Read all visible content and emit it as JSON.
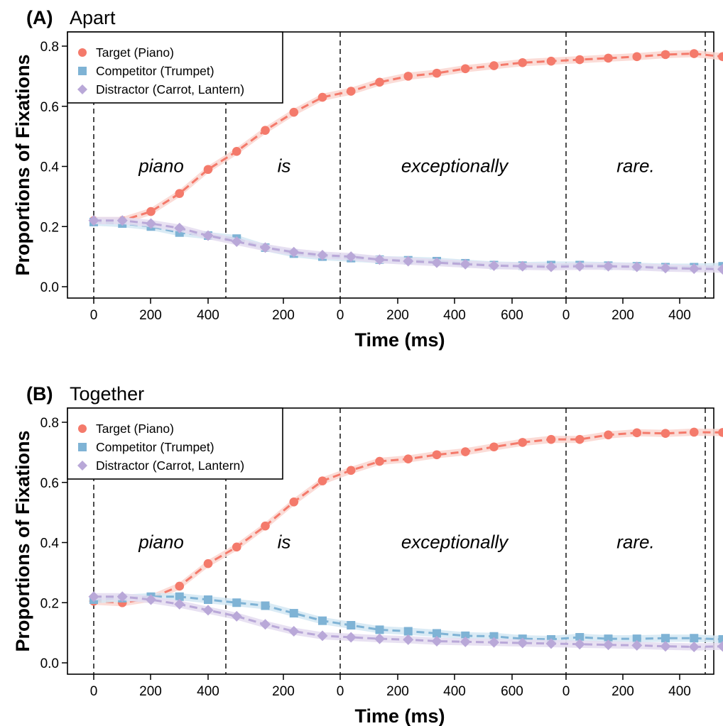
{
  "colors": {
    "target": "#f47a6b",
    "target_band": "#fad6d0",
    "competitor": "#7fb3d5",
    "competitor_band": "#d3e7f3",
    "distractor": "#b9a8d8",
    "distractor_band": "#e4dcf0"
  },
  "chart_data": [
    {
      "type": "line",
      "panel_tag": "(A)",
      "title": "Apart",
      "xlabel": "Time (ms)",
      "ylabel": "Proportions of Fixations",
      "ylim": [
        0,
        0.8
      ],
      "y_ticks": [
        "0.0",
        "0.2",
        "0.4",
        "0.6",
        "0.8"
      ],
      "x_tick_labels": [
        "0",
        "200",
        "400",
        "200",
        "0",
        "200",
        "400",
        "600",
        "0",
        "200",
        "400"
      ],
      "word_labels": [
        "piano",
        "is",
        "exceptionally",
        "rare."
      ],
      "legend_position": "top-left",
      "markers": [
        "circle",
        "square",
        "diamond"
      ],
      "series": [
        {
          "name": "Target (Piano)",
          "values": [
            0.22,
            0.22,
            0.25,
            0.31,
            0.39,
            0.45,
            0.52,
            0.58,
            0.63,
            0.65,
            0.68,
            0.7,
            0.71,
            0.725,
            0.735,
            0.745,
            0.75,
            0.755,
            0.76,
            0.765,
            0.772,
            0.775,
            0.765
          ]
        },
        {
          "name": "Competitor (Trumpet)",
          "values": [
            0.215,
            0.21,
            0.2,
            0.18,
            0.17,
            0.16,
            0.13,
            0.11,
            0.1,
            0.095,
            0.09,
            0.088,
            0.085,
            0.078,
            0.072,
            0.07,
            0.072,
            0.072,
            0.07,
            0.068,
            0.065,
            0.065,
            0.068
          ]
        },
        {
          "name": "Distractor (Carrot, Lantern)",
          "values": [
            0.22,
            0.22,
            0.21,
            0.195,
            0.17,
            0.15,
            0.13,
            0.115,
            0.105,
            0.1,
            0.09,
            0.085,
            0.08,
            0.075,
            0.07,
            0.068,
            0.066,
            0.068,
            0.068,
            0.066,
            0.062,
            0.06,
            0.058
          ]
        }
      ]
    },
    {
      "type": "line",
      "panel_tag": "(B)",
      "title": "Together",
      "xlabel": "Time (ms)",
      "ylabel": "Proportions of Fixations",
      "ylim": [
        0,
        0.8
      ],
      "y_ticks": [
        "0.0",
        "0.2",
        "0.4",
        "0.6",
        "0.8"
      ],
      "x_tick_labels": [
        "0",
        "200",
        "400",
        "200",
        "0",
        "200",
        "400",
        "600",
        "0",
        "200",
        "400"
      ],
      "word_labels": [
        "piano",
        "is",
        "exceptionally",
        "rare."
      ],
      "legend_position": "top-left",
      "markers": [
        "circle",
        "square",
        "diamond"
      ],
      "series": [
        {
          "name": "Target (Piano)",
          "values": [
            0.205,
            0.2,
            0.215,
            0.255,
            0.33,
            0.385,
            0.455,
            0.535,
            0.605,
            0.64,
            0.67,
            0.678,
            0.692,
            0.702,
            0.718,
            0.733,
            0.743,
            0.743,
            0.758,
            0.765,
            0.763,
            0.767,
            0.766
          ]
        },
        {
          "name": "Competitor (Trumpet)",
          "values": [
            0.21,
            0.215,
            0.22,
            0.22,
            0.21,
            0.2,
            0.19,
            0.165,
            0.14,
            0.125,
            0.11,
            0.105,
            0.098,
            0.09,
            0.088,
            0.08,
            0.078,
            0.085,
            0.08,
            0.08,
            0.082,
            0.082,
            0.078
          ]
        },
        {
          "name": "Distractor (Carrot, Lantern)",
          "values": [
            0.22,
            0.22,
            0.21,
            0.195,
            0.175,
            0.155,
            0.128,
            0.105,
            0.09,
            0.085,
            0.08,
            0.077,
            0.072,
            0.07,
            0.068,
            0.066,
            0.064,
            0.062,
            0.06,
            0.058,
            0.055,
            0.053,
            0.055
          ]
        }
      ]
    }
  ]
}
